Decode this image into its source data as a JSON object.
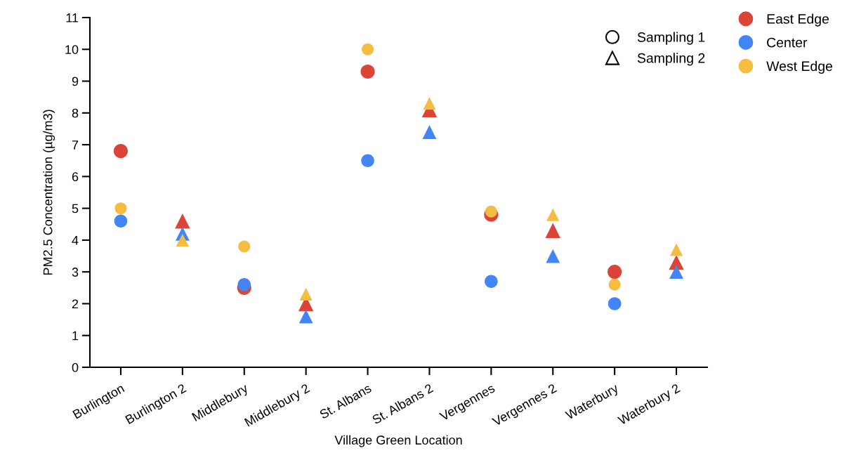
{
  "chart_data": {
    "type": "scatter",
    "xlabel": "Village Green Location",
    "ylabel": "PM2.5 Concentration (µg/m3)",
    "categories": [
      "Burlington",
      "Burlington 2",
      "Middlebury",
      "Middlebury 2",
      "St. Albans",
      "St. Albans 2",
      "Vergennes",
      "Vergennes 2",
      "Waterbury",
      "Waterbury 2"
    ],
    "ylim": [
      0,
      11
    ],
    "yticks": [
      0,
      1,
      2,
      3,
      4,
      5,
      6,
      7,
      8,
      9,
      10,
      11
    ],
    "grid": false,
    "legend": "top right",
    "series": [
      {
        "name": "East Edge",
        "color": "#db4437",
        "marker": "circle",
        "values": [
          6.8,
          null,
          2.5,
          null,
          9.3,
          null,
          4.8,
          null,
          3.0,
          null
        ]
      },
      {
        "name": "Center",
        "color": "#4285f4",
        "marker": "circle",
        "values": [
          4.6,
          null,
          2.6,
          null,
          6.5,
          null,
          2.7,
          null,
          2.0,
          null
        ]
      },
      {
        "name": "West Edge",
        "color": "#f4bd42",
        "marker": "circle",
        "values": [
          5.0,
          null,
          3.8,
          null,
          10.0,
          null,
          4.9,
          null,
          2.6,
          null
        ]
      },
      {
        "color": "#db4437",
        "marker": "triangle",
        "values": [
          null,
          4.6,
          null,
          2.0,
          null,
          8.1,
          null,
          4.3,
          null,
          3.3
        ]
      },
      {
        "color": "#4285f4",
        "marker": "triangle",
        "values": [
          null,
          4.2,
          null,
          1.6,
          null,
          7.4,
          null,
          3.5,
          null,
          3.0
        ]
      },
      {
        "color": "#f4bd42",
        "marker": "triangle",
        "values": [
          null,
          4.0,
          null,
          2.3,
          null,
          8.3,
          null,
          4.8,
          null,
          3.7
        ]
      }
    ],
    "annotations": [
      "Sampling 1",
      "Sampling 2"
    ]
  }
}
